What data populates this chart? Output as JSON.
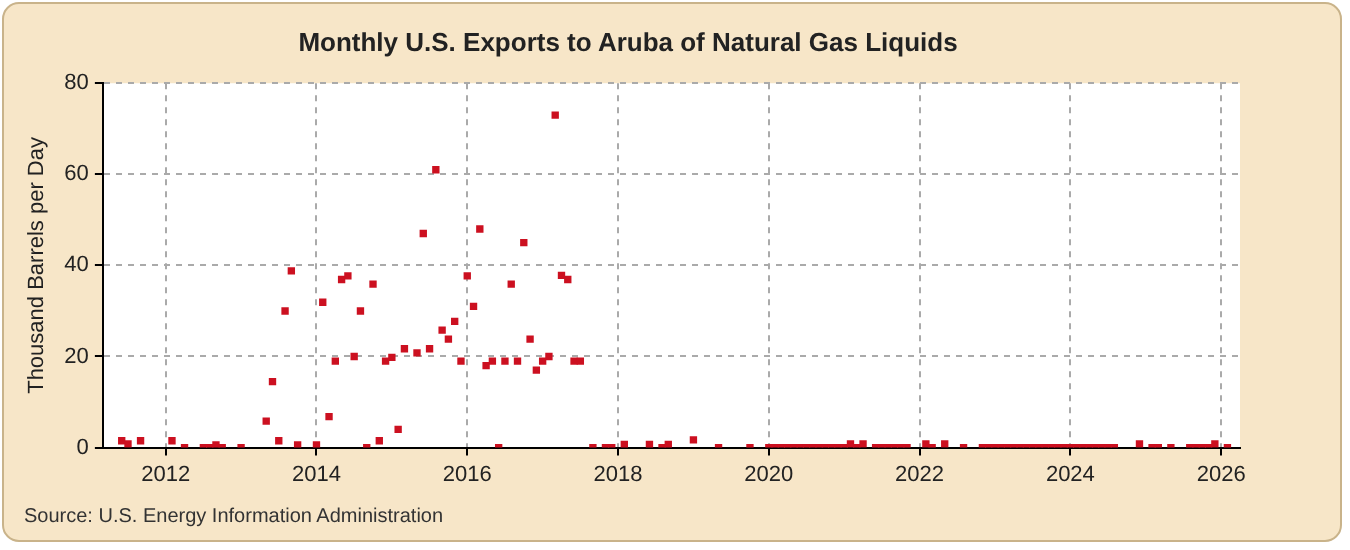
{
  "chart_data": {
    "type": "scatter",
    "title": "Monthly U.S. Exports to Aruba of Natural Gas Liquids",
    "ylabel": "Thousand Barrels per Day",
    "annotations": [
      "Source: U.S. Energy Information Administration"
    ],
    "x": [
      "2011-06",
      "2011-07",
      "2011-09",
      "2012-02",
      "2012-04",
      "2012-07",
      "2012-08",
      "2012-09",
      "2012-10",
      "2013-01",
      "2013-05",
      "2013-06",
      "2013-07",
      "2013-08",
      "2013-09",
      "2013-10",
      "2014-01",
      "2014-02",
      "2014-03",
      "2014-04",
      "2014-05",
      "2014-06",
      "2014-07",
      "2014-08",
      "2014-09",
      "2014-10",
      "2014-11",
      "2014-12",
      "2015-01",
      "2015-02",
      "2015-03",
      "2015-05",
      "2015-06",
      "2015-07",
      "2015-08",
      "2015-09",
      "2015-10",
      "2015-11",
      "2015-12",
      "2016-01",
      "2016-02",
      "2016-03",
      "2016-04",
      "2016-05",
      "2016-06",
      "2016-07",
      "2016-08",
      "2016-09",
      "2016-10",
      "2016-11",
      "2016-12",
      "2017-01",
      "2017-02",
      "2017-03",
      "2017-04",
      "2017-05",
      "2017-06",
      "2017-07",
      "2017-09",
      "2017-11",
      "2017-12",
      "2018-02",
      "2018-06",
      "2018-08",
      "2018-09",
      "2019-01",
      "2019-05",
      "2019-10",
      "2020-01",
      "2020-02",
      "2020-03",
      "2020-04",
      "2020-05",
      "2020-06",
      "2020-07",
      "2020-08",
      "2020-09",
      "2020-10",
      "2020-11",
      "2020-12",
      "2021-01",
      "2021-02",
      "2021-03",
      "2021-04",
      "2021-06",
      "2021-07",
      "2021-08",
      "2021-09",
      "2021-10",
      "2021-11",
      "2022-02",
      "2022-03",
      "2022-05",
      "2022-08",
      "2022-11",
      "2022-12",
      "2023-01",
      "2023-02",
      "2023-03",
      "2023-04",
      "2023-05",
      "2023-06",
      "2023-07",
      "2023-08",
      "2023-09",
      "2023-10",
      "2023-11",
      "2023-12",
      "2024-01",
      "2024-02",
      "2024-03",
      "2024-04",
      "2024-05",
      "2024-06",
      "2024-07",
      "2024-08",
      "2024-12",
      "2025-02",
      "2025-03",
      "2025-05",
      "2025-08",
      "2025-09",
      "2025-10",
      "2025-11",
      "2025-12",
      "2026-02"
    ],
    "series": [
      {
        "color": "#cc1020",
        "values": [
          1.5,
          0.8,
          1.5,
          1.5,
          0,
          0,
          0,
          0.6,
          0,
          0,
          5.8,
          14.5,
          1.5,
          30,
          38.8,
          0.6,
          0.6,
          31.9,
          6.8,
          19,
          36.9,
          37.7,
          20,
          30,
          0,
          35.9,
          1.5,
          19,
          19.8,
          4,
          21.7,
          20.8,
          47,
          21.7,
          61,
          25.8,
          23.8,
          27.7,
          19,
          37.7,
          31,
          48,
          18,
          19,
          0,
          19,
          35.9,
          19,
          45,
          23.8,
          17,
          19,
          20,
          73,
          37.8,
          36.9,
          19,
          19,
          0,
          0,
          0,
          0.7,
          0.7,
          0,
          0.7,
          1.7,
          0,
          0,
          0,
          0,
          0,
          0,
          0,
          0,
          0,
          0,
          0,
          0,
          0,
          0,
          0,
          0.8,
          0,
          0.8,
          0,
          0,
          0,
          0,
          0,
          0,
          0.8,
          0,
          0.8,
          0,
          0,
          0,
          0,
          0,
          0,
          0,
          0,
          0,
          0,
          0,
          0,
          0,
          0,
          0,
          0,
          0,
          0,
          0,
          0,
          0,
          0,
          0,
          0.8,
          0,
          0,
          0,
          0,
          0,
          0,
          0,
          0.8,
          0
        ]
      }
    ],
    "xlim": [
      "2011-03",
      "2026-04"
    ],
    "xticks": [
      "2012",
      "2014",
      "2016",
      "2018",
      "2020",
      "2022",
      "2024",
      "2026"
    ],
    "ylim": [
      0,
      80
    ],
    "yticks": [
      0,
      20,
      40,
      60,
      80
    ],
    "grid": true,
    "marker": "square",
    "legend": false
  }
}
